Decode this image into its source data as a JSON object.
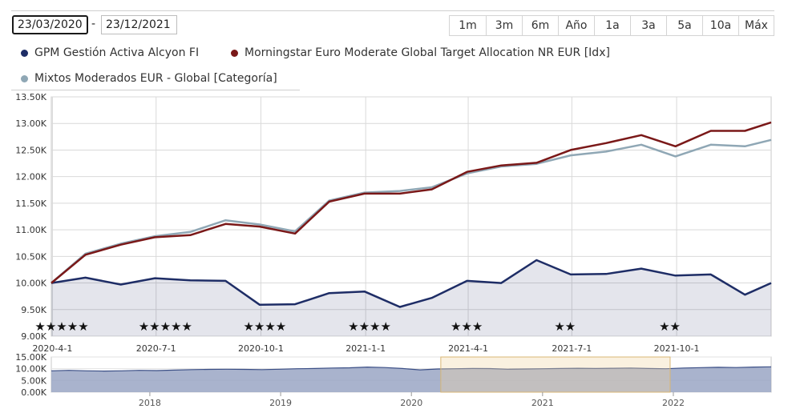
{
  "controls": {
    "date_from": "23/03/2020",
    "date_separator": "-",
    "date_to": "23/12/2021",
    "ranges": [
      "1m",
      "3m",
      "6m",
      "Año",
      "1a",
      "3a",
      "5a",
      "10a",
      "Máx"
    ]
  },
  "legend": [
    {
      "name": "GPM Gestión Activa Alcyon FI",
      "color": "#1e2d66"
    },
    {
      "name": "Morningstar Euro Moderate Global Target Allocation NR EUR [Idx]",
      "color": "#7a1818"
    },
    {
      "name": "Mixtos Moderados EUR - Global [Categoría]",
      "color": "#8fa7b5"
    }
  ],
  "chart_data": [
    {
      "type": "line",
      "x": [
        "2020-03-31",
        "2020-04-30",
        "2020-05-31",
        "2020-06-30",
        "2020-07-31",
        "2020-08-31",
        "2020-09-30",
        "2020-10-31",
        "2020-11-30",
        "2020-12-31",
        "2021-01-31",
        "2021-02-28",
        "2021-03-31",
        "2021-04-30",
        "2021-05-31",
        "2021-06-30",
        "2021-07-31",
        "2021-08-31",
        "2021-09-30",
        "2021-10-31",
        "2021-11-30",
        "2021-12-23"
      ],
      "x_tick_labels": [
        "2020-4-1",
        "2020-7-1",
        "2020-10-1",
        "2021-1-1",
        "2021-4-1",
        "2021-7-1",
        "2021-10-1"
      ],
      "y_tick_labels": [
        "9.00K",
        "9.50K",
        "10.00K",
        "10.50K",
        "11.00K",
        "11.50K",
        "12.00K",
        "12.50K",
        "13.00K",
        "13.50K"
      ],
      "ylim": [
        9000,
        13500
      ],
      "grid": true,
      "series": [
        {
          "name": "GPM Gestión Activa Alcyon FI",
          "color": "#1e2d66",
          "area": true,
          "values": [
            10000,
            10100,
            9970,
            10090,
            10050,
            10040,
            9590,
            9600,
            9810,
            9840,
            9550,
            9720,
            10040,
            10000,
            10430,
            10160,
            10170,
            10270,
            10140,
            10160,
            9780,
            10000
          ]
        },
        {
          "name": "Mixtos Moderados EUR - Global [Categoría]",
          "color": "#8fa7b5",
          "values": [
            10000,
            10550,
            10740,
            10880,
            10960,
            11180,
            11100,
            10970,
            11550,
            11700,
            11730,
            11800,
            12060,
            12190,
            12240,
            12400,
            12470,
            12600,
            12380,
            12600,
            12570,
            12690
          ]
        },
        {
          "name": "Morningstar Euro Moderate Global Target Allocation NR EUR [Idx]",
          "color": "#7a1818",
          "values": [
            10000,
            10530,
            10720,
            10860,
            10900,
            11110,
            11060,
            10930,
            11530,
            11680,
            11680,
            11760,
            12090,
            12210,
            12260,
            12500,
            12630,
            12780,
            12570,
            12860,
            12860,
            13020
          ]
        }
      ],
      "ratings": [
        "★★★★★",
        "★★★★★",
        "★★★★",
        "★★★★",
        "★★★",
        "★★",
        "★★"
      ]
    },
    {
      "type": "area",
      "x_range": [
        "2017-04-01",
        "2022-10-01"
      ],
      "x_tick_labels": [
        "2018",
        "2019",
        "2020",
        "2021",
        "2022"
      ],
      "y_tick_labels": [
        "0.00K",
        "5.00K",
        "10.00K",
        "15.00K"
      ],
      "ylim": [
        0,
        15000
      ],
      "selected_range": [
        "2020-03-23",
        "2021-12-23"
      ],
      "values": [
        9100,
        9300,
        9100,
        9000,
        9100,
        9300,
        9200,
        9400,
        9600,
        9700,
        9800,
        9700,
        9600,
        9800,
        10000,
        10100,
        10300,
        10400,
        10700,
        10500,
        10100,
        9500,
        9900,
        10000,
        10100,
        10050,
        9800,
        9900,
        10000,
        10100,
        10200,
        10100,
        10200,
        10300,
        10100,
        10000,
        10300,
        10450,
        10600,
        10500,
        10700,
        10800
      ]
    }
  ]
}
